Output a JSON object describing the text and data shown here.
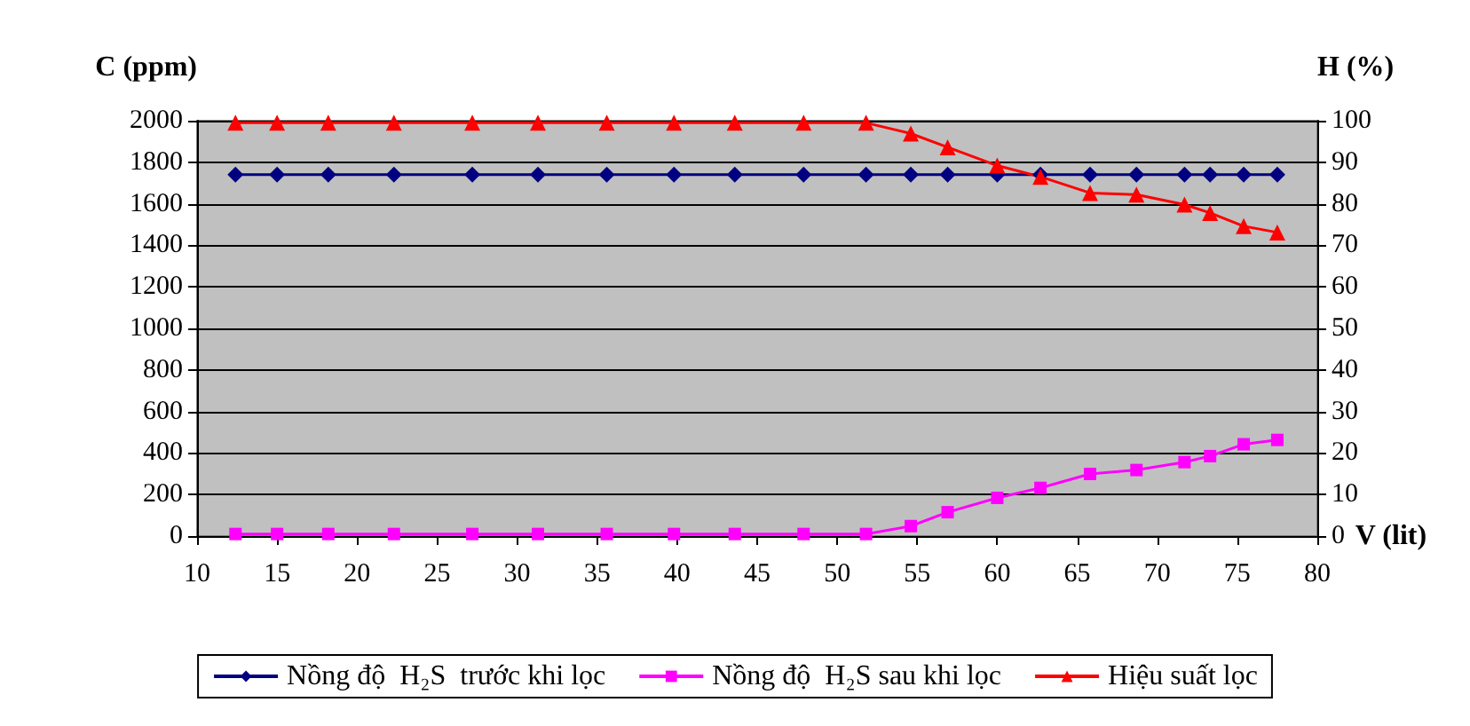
{
  "chart_data": {
    "type": "line",
    "ylabel": "C (ppm)",
    "y2label": "H (%)",
    "xlabel": "V (lit)",
    "x": [
      12.4,
      15,
      18.2,
      22.3,
      27.2,
      31.3,
      35.6,
      39.8,
      43.6,
      47.9,
      51.8,
      54.6,
      56.9,
      60,
      62.7,
      65.8,
      68.7,
      71.7,
      73.3,
      75.4,
      77.5
    ],
    "series": [
      {
        "name": "Nồng độ  H₂S  trước khi lọc",
        "color": "#000080",
        "marker": "diamond",
        "values": [
          1740,
          1740,
          1740,
          1740,
          1740,
          1740,
          1740,
          1740,
          1740,
          1740,
          1740,
          1740,
          1740,
          1740,
          1740,
          1740,
          1740,
          1740,
          1740,
          1740,
          1740
        ]
      },
      {
        "name": "Nồng độ  H₂S sau khi lọc",
        "color": "#ff00ff",
        "marker": "square",
        "values": [
          10,
          10,
          10,
          10,
          10,
          10,
          10,
          10,
          10,
          10,
          10,
          48,
          115,
          184,
          232,
          299,
          318,
          356,
          385,
          442,
          463
        ]
      },
      {
        "name": "Hiệu suất lọc",
        "color": "#ff0000",
        "marker": "triangle",
        "axis": "y2",
        "values": [
          99.5,
          99.5,
          99.5,
          99.5,
          99.5,
          99.5,
          99.5,
          99.5,
          99.5,
          99.5,
          99.5,
          96.9,
          93.6,
          89.2,
          86.5,
          82.6,
          82.2,
          79.8,
          77.8,
          74.6,
          73.1
        ]
      }
    ],
    "xlim": [
      10,
      80
    ],
    "xticks": [
      10,
      15,
      20,
      25,
      30,
      35,
      40,
      45,
      50,
      55,
      60,
      65,
      70,
      75,
      80
    ],
    "ylim": [
      0,
      2000
    ],
    "yticks": [
      0,
      200,
      400,
      600,
      800,
      1000,
      1200,
      1400,
      1600,
      1800,
      2000
    ],
    "y2lim": [
      0,
      100
    ],
    "y2ticks": [
      0,
      10,
      20,
      30,
      40,
      50,
      60,
      70,
      80,
      90,
      100
    ],
    "grid": "y",
    "legend": "bottom",
    "line_style": "solid"
  }
}
